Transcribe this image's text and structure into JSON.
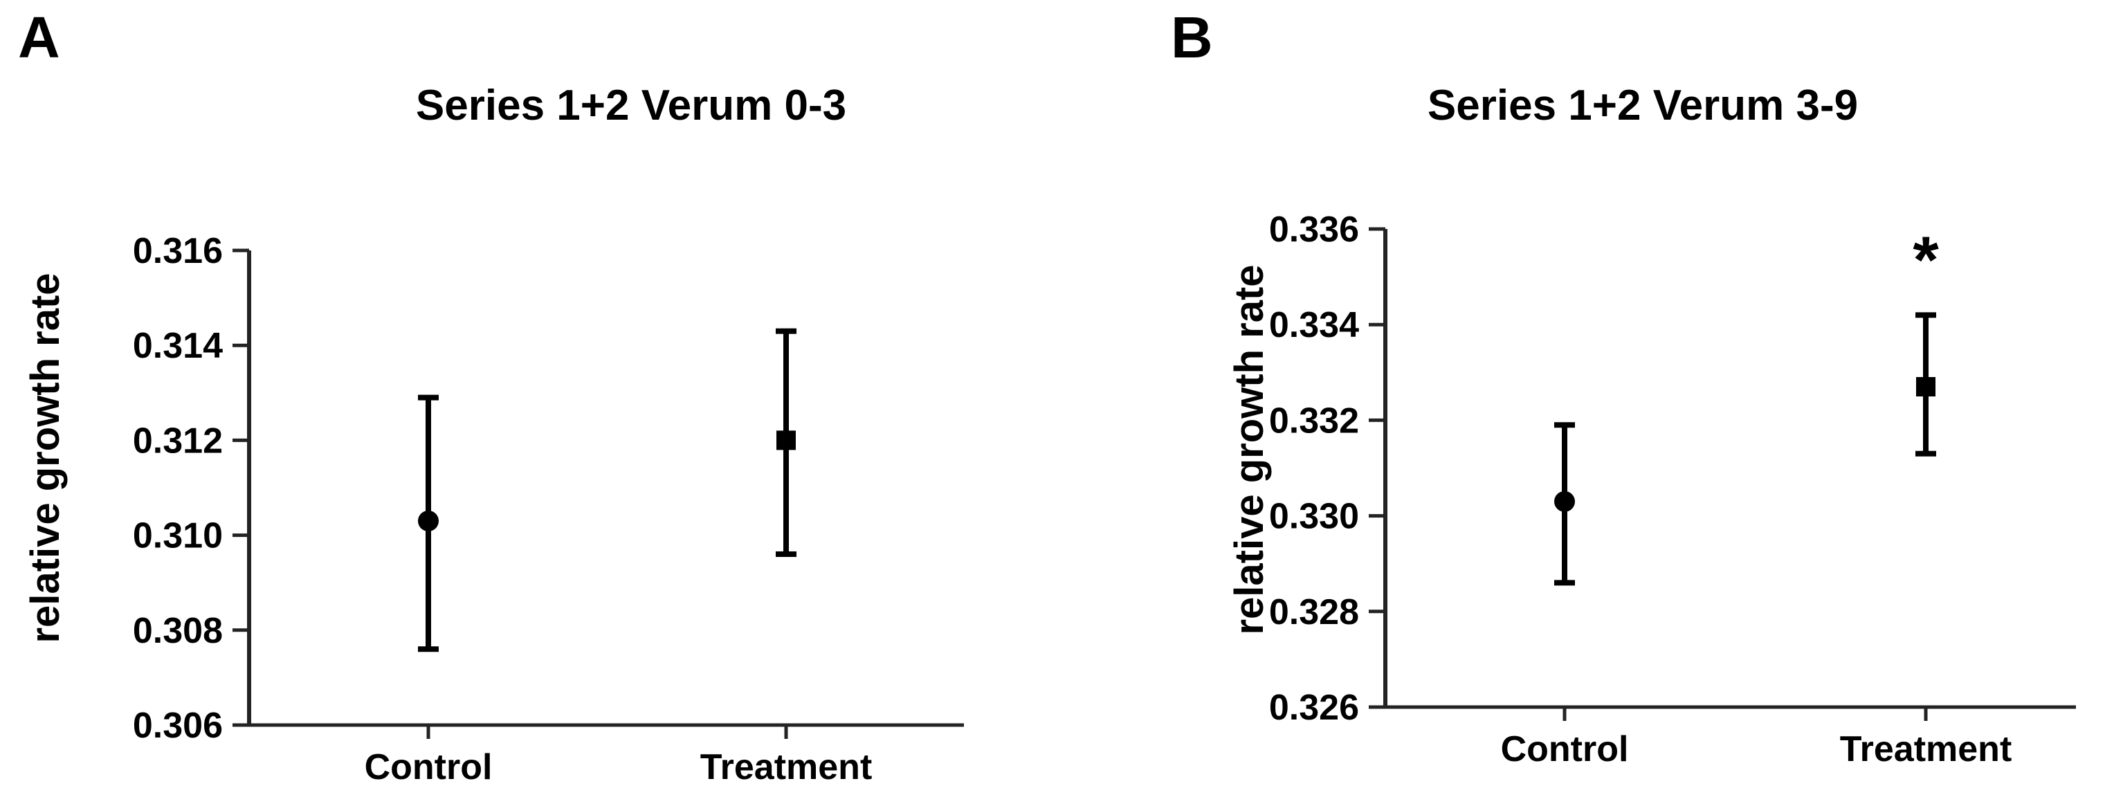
{
  "figure": {
    "background_color": "#ffffff",
    "data_color": "#000000",
    "axis_color": "#232323",
    "significance_color": "#ff0000"
  },
  "chart_data": [
    {
      "type": "scatter",
      "panel_label": "A",
      "title": "Series 1+2 Verum 0-3",
      "xlabel": "",
      "ylabel": "relative growth rate",
      "categories": [
        "Control",
        "Treatment"
      ],
      "ylim": [
        0.306,
        0.316
      ],
      "ytick_step": 0.002,
      "ytick_labels": [
        "0.306",
        "0.308",
        "0.310",
        "0.312",
        "0.314",
        "0.316"
      ],
      "grid": false,
      "legend": false,
      "series": [
        {
          "name": "mean with error bars",
          "points": [
            {
              "category": "Control",
              "marker": "circle",
              "mean": 0.3103,
              "lower": 0.3076,
              "upper": 0.3129,
              "significance": null
            },
            {
              "category": "Treatment",
              "marker": "square",
              "mean": 0.312,
              "lower": 0.3096,
              "upper": 0.3143,
              "significance": null
            }
          ]
        }
      ]
    },
    {
      "type": "scatter",
      "panel_label": "B",
      "title": "Series 1+2 Verum 3-9",
      "xlabel": "",
      "ylabel": "relative growth rate",
      "categories": [
        "Control",
        "Treatment"
      ],
      "ylim": [
        0.326,
        0.336
      ],
      "ytick_step": 0.002,
      "ytick_labels": [
        "0.326",
        "0.328",
        "0.330",
        "0.332",
        "0.334",
        "0.336"
      ],
      "grid": false,
      "legend": false,
      "series": [
        {
          "name": "mean with error bars",
          "points": [
            {
              "category": "Control",
              "marker": "circle",
              "mean": 0.3303,
              "lower": 0.3286,
              "upper": 0.3319,
              "significance": null
            },
            {
              "category": "Treatment",
              "marker": "square",
              "mean": 0.3327,
              "lower": 0.3313,
              "upper": 0.3342,
              "significance": "*",
              "significance_value": 0.3356,
              "significance_color": "#ff0000"
            }
          ]
        }
      ]
    }
  ]
}
